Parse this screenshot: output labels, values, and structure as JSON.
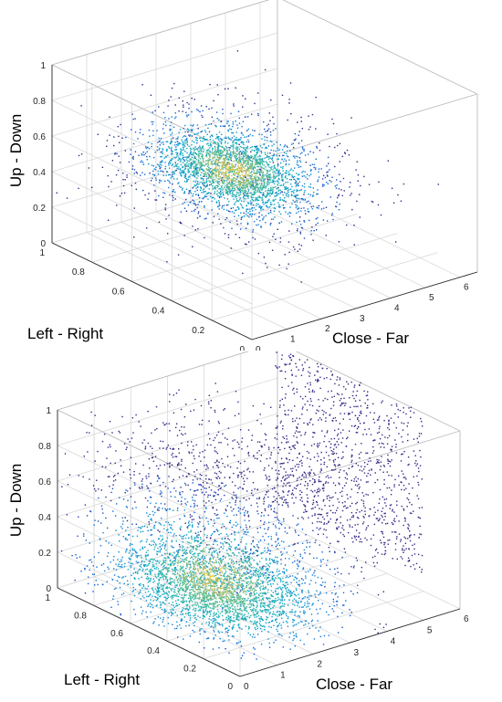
{
  "chart_data": [
    {
      "type": "scatter",
      "title": "",
      "projection": "3d",
      "grid": true,
      "colormap": "parula",
      "xlabel": "Close - Far",
      "ylabel": "Left - Right",
      "zlabel": "Up - Down",
      "xlim": [
        0,
        6.5
      ],
      "ylim": [
        0,
        1
      ],
      "zlim": [
        0,
        1
      ],
      "xticks": [
        "0",
        "1",
        "2",
        "3",
        "4",
        "5",
        "6"
      ],
      "yticks": [
        "0",
        "0.2",
        "0.4",
        "0.6",
        "0.8",
        "1"
      ],
      "zticks": [
        "0",
        "0.2",
        "0.4",
        "0.6",
        "0.8",
        "1"
      ],
      "cluster": {
        "x_center": 2.6,
        "y_center": 0.55,
        "z_center": 0.5,
        "density": "single dense ellipsoidal core"
      }
    },
    {
      "type": "scatter",
      "title": "",
      "projection": "3d",
      "grid": true,
      "colormap": "parula",
      "xlabel": "Close - Far",
      "ylabel": "Left - Right",
      "zlabel": "Up - Down",
      "xlim": [
        0,
        6
      ],
      "ylim": [
        0,
        1
      ],
      "zlim": [
        0,
        1
      ],
      "xticks": [
        "0",
        "1",
        "2",
        "3",
        "4",
        "5",
        "6"
      ],
      "yticks": [
        "0",
        "0.2",
        "0.4",
        "0.6",
        "0.8",
        "1"
      ],
      "zticks": [
        "0",
        "0.2",
        "0.4",
        "0.6",
        "0.8",
        "1"
      ],
      "cluster": {
        "x_center": 1.8,
        "y_center": 0.5,
        "z_center": 0.2,
        "density": "dense core near floor, points filling to far wall at x≈5.8"
      }
    }
  ]
}
